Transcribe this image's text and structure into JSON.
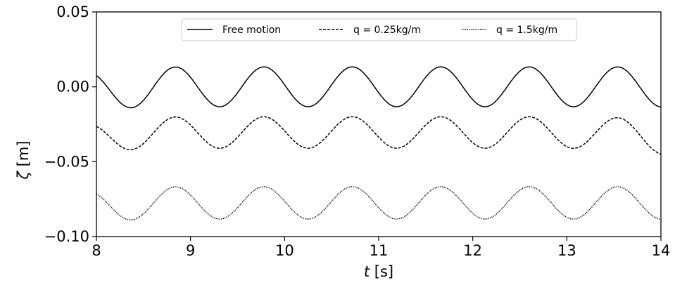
{
  "chart_data": {
    "type": "line",
    "xlabel_var": "t",
    "xlabel_unit": " [s]",
    "ylabel_var": "ζ",
    "ylabel_unit": " [m]",
    "xlim": [
      8,
      14
    ],
    "ylim": [
      -0.1,
      0.05
    ],
    "xticks": [
      8,
      9,
      10,
      11,
      12,
      13,
      14
    ],
    "xtick_labels": [
      "8",
      "9",
      "10",
      "11",
      "12",
      "13",
      "14"
    ],
    "yticks": [
      0.05,
      0.0,
      -0.05,
      -0.1
    ],
    "ytick_labels": [
      "0.05",
      "0.00",
      "−0.05",
      "−0.10"
    ],
    "grid": false,
    "legend_position": "top-center",
    "period_s": 0.94,
    "series": [
      {
        "name": "Free motion",
        "style": "solid",
        "color": "#000000",
        "mean": 0.0,
        "amplitude": 0.0133,
        "first_peak_t": 8.84,
        "start_value": 0.0075,
        "end_value": -0.0135
      },
      {
        "name": "q = 0.25kg/m",
        "style": "dashed",
        "color": "#000000",
        "mean": -0.0305,
        "amplitude": 0.0105,
        "first_peak_t": 8.84,
        "start_value": -0.0265,
        "end_value": -0.045
      },
      {
        "name": "q = 1.5kg/m",
        "style": "dotted",
        "color": "#000000",
        "mean": -0.0775,
        "amplitude": 0.0108,
        "first_peak_t": 8.84,
        "start_value": -0.0715,
        "end_value": -0.0885
      }
    ]
  }
}
